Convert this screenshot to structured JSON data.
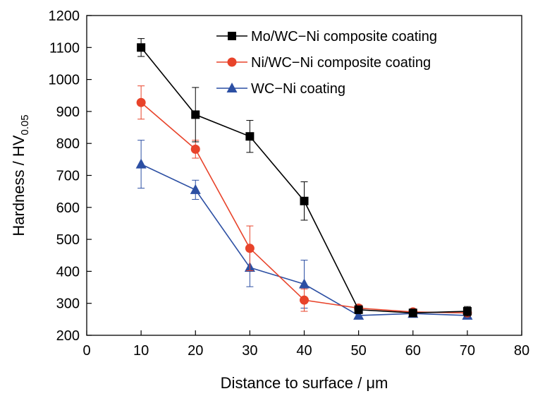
{
  "chart_data": {
    "type": "line",
    "xlabel": "Distance to surface / μm",
    "ylabel": "Hardness / HV",
    "ylabel_sub": "0.05",
    "xlim": [
      0,
      80
    ],
    "ylim": [
      200,
      1200
    ],
    "x_ticks": [
      0,
      10,
      20,
      30,
      40,
      50,
      60,
      70,
      80
    ],
    "y_ticks": [
      200,
      300,
      400,
      500,
      600,
      700,
      800,
      900,
      1000,
      1100,
      1200
    ],
    "grid": false,
    "legend_position": "top-right",
    "x": [
      10,
      20,
      30,
      40,
      50,
      60,
      70
    ],
    "series": [
      {
        "name": "Mo/WC−Ni composite coating",
        "color": "#000000",
        "marker": "square",
        "values": [
          1100,
          890,
          822,
          620,
          280,
          270,
          275
        ],
        "error": [
          28,
          85,
          50,
          60,
          12,
          12,
          15
        ]
      },
      {
        "name": "Ni/WC−Ni composite coating",
        "color": "#e8432a",
        "marker": "circle",
        "values": [
          928,
          782,
          472,
          310,
          285,
          273,
          270
        ],
        "error": [
          52,
          28,
          70,
          35,
          10,
          8,
          10
        ]
      },
      {
        "name": "WC−Ni coating",
        "color": "#2c4fa3",
        "marker": "triangle",
        "values": [
          735,
          655,
          412,
          360,
          262,
          268,
          262
        ],
        "error": [
          75,
          30,
          60,
          75,
          8,
          10,
          8
        ]
      }
    ]
  }
}
